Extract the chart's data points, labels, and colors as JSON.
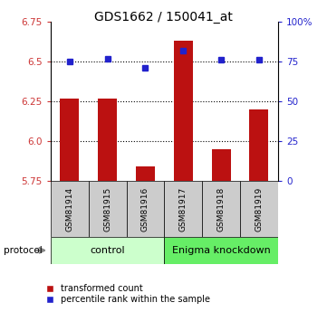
{
  "title": "GDS1662 / 150041_at",
  "samples": [
    "GSM81914",
    "GSM81915",
    "GSM81916",
    "GSM81917",
    "GSM81918",
    "GSM81919"
  ],
  "red_values": [
    6.27,
    6.27,
    5.84,
    6.63,
    5.95,
    6.2
  ],
  "blue_values": [
    6.5,
    6.52,
    6.46,
    6.57,
    6.51,
    6.51
  ],
  "ylim_left": [
    5.75,
    6.75
  ],
  "ylim_right": [
    0,
    100
  ],
  "left_ticks": [
    5.75,
    6.0,
    6.25,
    6.5,
    6.75
  ],
  "right_ticks": [
    0,
    25,
    50,
    75,
    100
  ],
  "right_tick_labels": [
    "0",
    "25",
    "50",
    "75",
    "100%"
  ],
  "control_label": "control",
  "knockdown_label": "Enigma knockdown",
  "protocol_label": "protocol",
  "legend_red": "transformed count",
  "legend_blue": "percentile rank within the sample",
  "bar_color": "#bb1111",
  "dot_color": "#2222cc",
  "control_bg": "#ccffcc",
  "knockdown_bg": "#66ee66",
  "sample_bg": "#cccccc",
  "bar_bottom": 5.75,
  "bar_width": 0.5
}
